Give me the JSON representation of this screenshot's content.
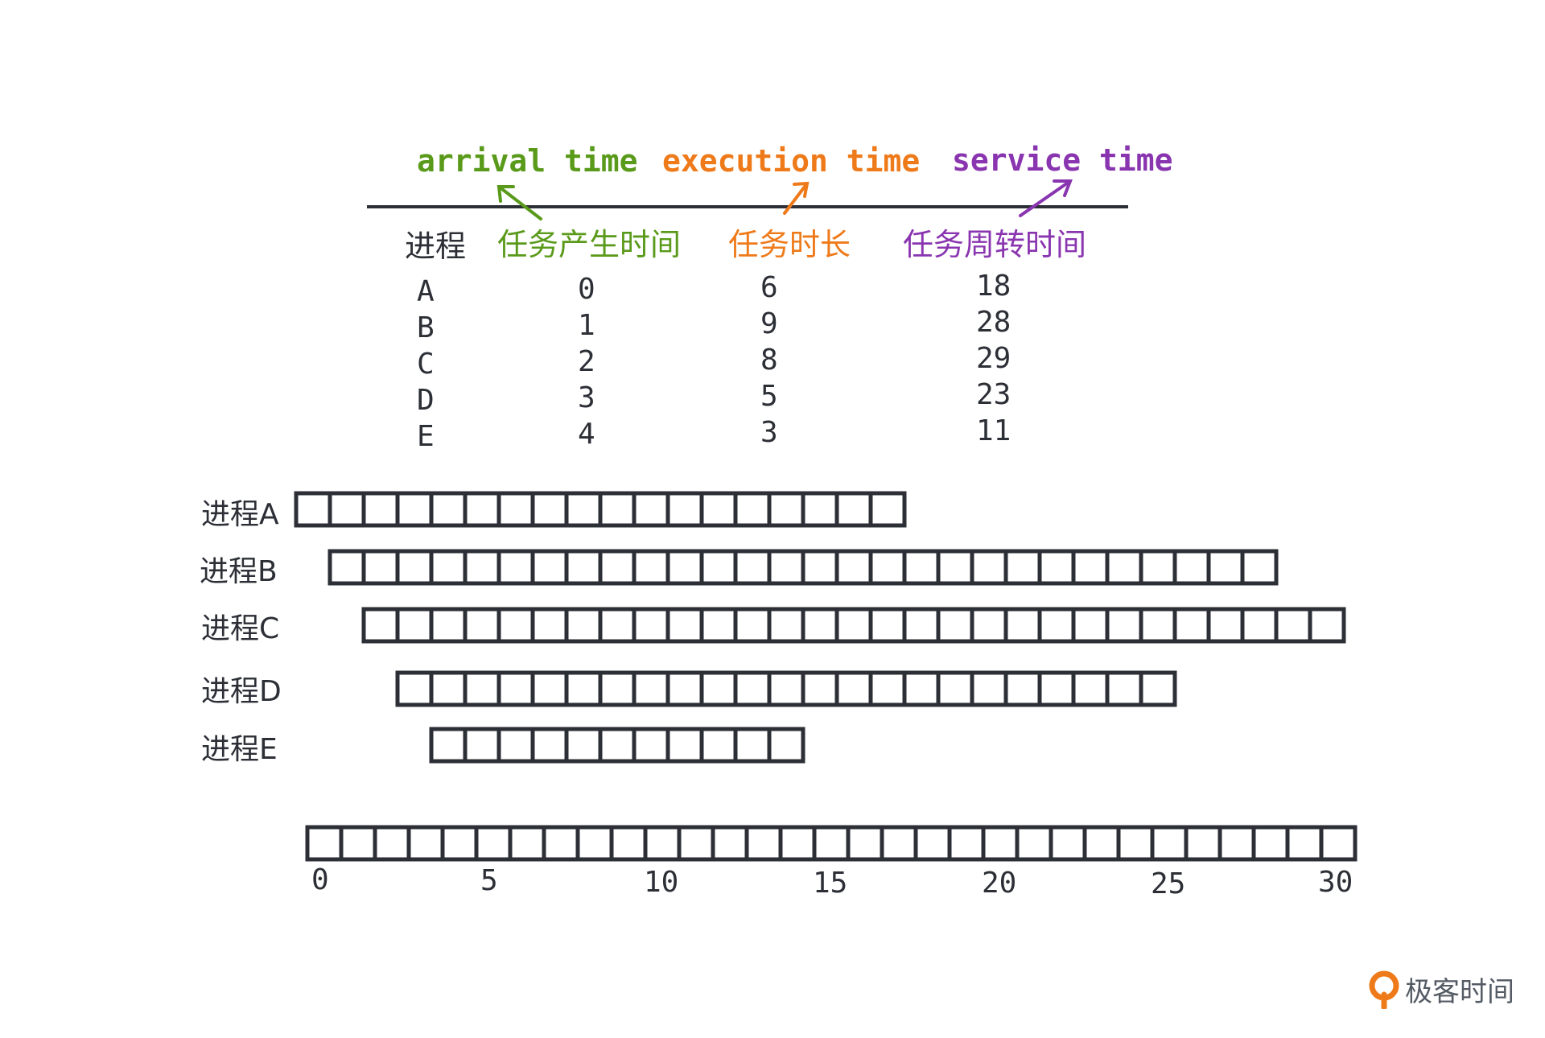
{
  "header_terms": {
    "arrival": "arrival time",
    "execution": "execution time",
    "service": "service time"
  },
  "column_headers": {
    "process": "进程",
    "arrival": "任务产生时间",
    "execution": "任务时长",
    "service": "任务周转时间"
  },
  "processes": [
    {
      "name": "A",
      "arrival": "0",
      "execution": "6",
      "service": "18",
      "label": "进程A"
    },
    {
      "name": "B",
      "arrival": "1",
      "execution": "9",
      "service": "28",
      "label": "进程B"
    },
    {
      "name": "C",
      "arrival": "2",
      "execution": "8",
      "service": "29",
      "label": "进程C"
    },
    {
      "name": "D",
      "arrival": "3",
      "execution": "5",
      "service": "23",
      "label": "进程D"
    },
    {
      "name": "E",
      "arrival": "4",
      "execution": "3",
      "service": "11",
      "label": "进程E"
    }
  ],
  "timeline": {
    "slots": 31,
    "tick_labels": [
      "0",
      "5",
      "10",
      "15",
      "20",
      "25",
      "30"
    ]
  },
  "colors": {
    "arrival": "#5a9a1a",
    "execution": "#ee7a1a",
    "service": "#8a35b0",
    "ink": "#2c2f36"
  },
  "logo": {
    "icon": "geektime-logo-icon",
    "text": "极客时间"
  }
}
